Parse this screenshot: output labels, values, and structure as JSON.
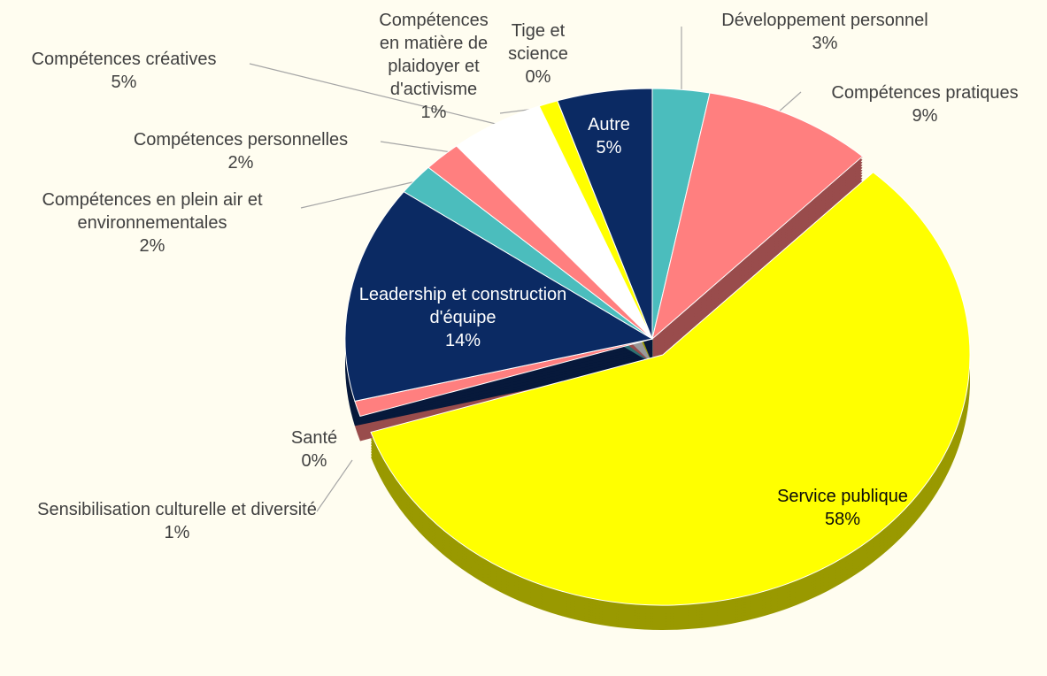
{
  "chart_data": {
    "type": "pie",
    "categories": [
      "Développement personnel",
      "Compétences pratiques",
      "Service publique",
      "Sensibilisation culturelle et diversité",
      "Santé",
      "Leadership et construction d'équipe",
      "Compétences en plein air et environnementales",
      "Compétences personnelles",
      "Compétences créatives",
      "Compétences en matière de plaidoyer et d'activisme",
      "Tige et science",
      "Autre"
    ],
    "values": [
      3,
      9,
      58,
      1,
      0,
      14,
      2,
      2,
      5,
      1,
      0,
      5
    ],
    "value_labels": [
      "3%",
      "9%",
      "58%",
      "1%",
      "0%",
      "14%",
      "2%",
      "2%",
      "5%",
      "1%",
      "0%",
      "5%"
    ],
    "colors": [
      "#4bbdbd",
      "#ff7f7f",
      "#ffff00",
      "#ff7f7f",
      "#7fb2e5",
      "#0b2a63",
      "#4bbdbd",
      "#ff7f7f",
      "#ffffff",
      "#ffff00",
      "#ffffff",
      "#0b2a63"
    ]
  }
}
